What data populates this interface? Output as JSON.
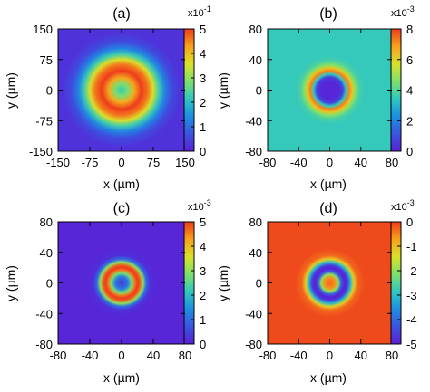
{
  "chart_data": [
    {
      "type": "heatmap",
      "title": "(a)",
      "xlabel": "x (µm)",
      "ylabel": "y (µm)",
      "xlim": [
        -150,
        150
      ],
      "ylim": [
        -150,
        150
      ],
      "xticks": [
        "-150",
        "-75",
        "0",
        "75",
        "150"
      ],
      "yticks": [
        "150",
        "75",
        "0",
        "-75",
        "-150"
      ],
      "colorbar": {
        "exponent": "x10",
        "power": "-1",
        "ticks": [
          "5",
          "4",
          "3",
          "2",
          "1",
          "0"
        ],
        "range": [
          0,
          5
        ]
      },
      "background_value": 0.2,
      "profile": [
        {
          "r": 0,
          "value": 2.2
        },
        {
          "r": 15,
          "value": 2.8
        },
        {
          "r": 30,
          "value": 4.2
        },
        {
          "r": 47,
          "value": 5.0
        },
        {
          "r": 62,
          "value": 4.6
        },
        {
          "r": 75,
          "value": 3.6
        },
        {
          "r": 88,
          "value": 2.3
        },
        {
          "r": 102,
          "value": 1.3
        },
        {
          "r": 118,
          "value": 0.6
        },
        {
          "r": 140,
          "value": 0.25
        }
      ]
    },
    {
      "type": "heatmap",
      "title": "(b)",
      "xlabel": "x (µm)",
      "ylabel": "y (µm)",
      "xlim": [
        -80,
        80
      ],
      "ylim": [
        -80,
        80
      ],
      "xticks": [
        "-80",
        "-40",
        "0",
        "40",
        "80"
      ],
      "yticks": [
        "80",
        "40",
        "0",
        "-40",
        "-80"
      ],
      "colorbar": {
        "exponent": "x10",
        "power": "-3",
        "ticks": [
          "8",
          "6",
          "4",
          "2",
          "0"
        ],
        "range": [
          0,
          8
        ]
      },
      "background_value": 3.5,
      "profile": [
        {
          "r": 0,
          "value": 0.1
        },
        {
          "r": 12,
          "value": 0.2
        },
        {
          "r": 17,
          "value": 0.8
        },
        {
          "r": 21,
          "value": 3.5
        },
        {
          "r": 25,
          "value": 7.2
        },
        {
          "r": 29,
          "value": 6.2
        },
        {
          "r": 33,
          "value": 4.6
        },
        {
          "r": 38,
          "value": 3.8
        },
        {
          "r": 45,
          "value": 3.5
        }
      ]
    },
    {
      "type": "heatmap",
      "title": "(c)",
      "xlabel": "x (µm)",
      "ylabel": "y (µm)",
      "xlim": [
        -80,
        80
      ],
      "ylim": [
        -80,
        80
      ],
      "xticks": [
        "-80",
        "-40",
        "0",
        "40",
        "80"
      ],
      "yticks": [
        "80",
        "40",
        "0",
        "-40",
        "-80"
      ],
      "colorbar": {
        "exponent": "x10",
        "power": "-3",
        "ticks": [
          "5",
          "4",
          "3",
          "2",
          "1",
          "0"
        ],
        "range": [
          0,
          5
        ]
      },
      "background_value": 0.1,
      "profile": [
        {
          "r": 0,
          "value": 0.3
        },
        {
          "r": 8,
          "value": 1.2
        },
        {
          "r": 13,
          "value": 2.8
        },
        {
          "r": 17,
          "value": 4.6
        },
        {
          "r": 20,
          "value": 5.0
        },
        {
          "r": 23,
          "value": 4.8
        },
        {
          "r": 27,
          "value": 3.0
        },
        {
          "r": 31,
          "value": 1.0
        },
        {
          "r": 36,
          "value": 0.2
        },
        {
          "r": 45,
          "value": 0.1
        }
      ]
    },
    {
      "type": "heatmap",
      "title": "(d)",
      "xlabel": "x (µm)",
      "ylabel": "y (µm)",
      "xlim": [
        -80,
        80
      ],
      "ylim": [
        -80,
        80
      ],
      "xticks": [
        "-80",
        "-40",
        "0",
        "40",
        "80"
      ],
      "yticks": [
        "80",
        "40",
        "0",
        "-40",
        "-80"
      ],
      "colorbar": {
        "exponent": "x10",
        "power": "-3",
        "ticks": [
          "0",
          "-1",
          "-2",
          "-3",
          "-4",
          "-5"
        ],
        "range": [
          -5,
          0
        ]
      },
      "background_value": -0.1,
      "profile": [
        {
          "r": 0,
          "value": -0.3
        },
        {
          "r": 7,
          "value": -0.6
        },
        {
          "r": 11,
          "value": -2.0
        },
        {
          "r": 15,
          "value": -4.2
        },
        {
          "r": 19,
          "value": -5.0
        },
        {
          "r": 23,
          "value": -4.6
        },
        {
          "r": 27,
          "value": -3.0
        },
        {
          "r": 31,
          "value": -1.2
        },
        {
          "r": 36,
          "value": -0.3
        },
        {
          "r": 45,
          "value": -0.1
        }
      ]
    }
  ],
  "colormap": [
    "#5a1fd6",
    "#3a54e0",
    "#1d8fe2",
    "#2fc7c0",
    "#7fe06a",
    "#d9e12a",
    "#f7a21c",
    "#ee3c1c"
  ]
}
